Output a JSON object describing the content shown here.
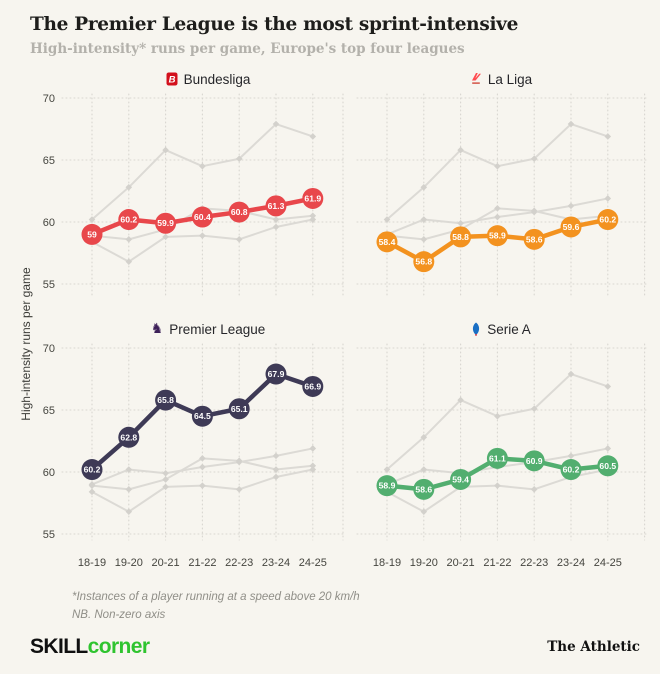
{
  "header": {
    "title": "The Premier League is the most sprint-intensive",
    "subtitle": "High-intensity* runs per game, Europe's top four leagues"
  },
  "chart_data": {
    "type": "line",
    "layout": "2x2 small multiples; each panel highlights one league, others shown in gray",
    "categories": [
      "18-19",
      "19-20",
      "20-21",
      "21-22",
      "22-23",
      "23-24",
      "24-25"
    ],
    "xlabel": "",
    "ylabel": "High-intensity runs per game",
    "ylim": [
      55,
      70
    ],
    "y_ticks": [
      70,
      65,
      60,
      55
    ],
    "grid": "dotted",
    "legend_position": "top-center of each panel",
    "series": [
      {
        "name": "Bundesliga",
        "color": "#e8474b",
        "values": [
          59,
          60.2,
          59.9,
          60.4,
          60.8,
          61.3,
          61.9
        ],
        "point_labels": [
          "59",
          "60.2",
          "59.9",
          "60.4",
          "60.8",
          "61.3",
          "61.9"
        ]
      },
      {
        "name": "La Liga",
        "color": "#f3921f",
        "values": [
          58.4,
          56.8,
          58.8,
          58.9,
          58.6,
          59.6,
          60.2
        ],
        "point_labels": [
          "58.4",
          "56.8",
          "58.8",
          "58.9",
          "58.6",
          "59.6",
          "60.2"
        ]
      },
      {
        "name": "Premier League",
        "color": "#3e3a56",
        "values": [
          60.2,
          62.8,
          65.8,
          64.5,
          65.1,
          67.9,
          66.9
        ],
        "point_labels": [
          "60.2",
          "62.8",
          "65.8",
          "64.5",
          "65.1",
          "67.9",
          "66.9"
        ]
      },
      {
        "name": "Serie A",
        "color": "#52ae6f",
        "values": [
          58.9,
          58.6,
          59.4,
          61.1,
          60.9,
          60.2,
          60.5
        ],
        "point_labels": [
          "58.9",
          "58.6",
          "59.4",
          "61.1",
          "60.9",
          "60.2",
          "60.5"
        ]
      }
    ]
  },
  "footnote": {
    "line1": "*Instances of a player running at a speed above 20 km/h",
    "line2": "NB. Non-zero axis"
  },
  "branding": {
    "skill": "SKILL",
    "corner": "corner",
    "athletic": "The Athletic"
  },
  "colors": {
    "background": "#f7f5ef",
    "bundesliga": "#e8474b",
    "la_liga": "#f3921f",
    "premier_league": "#3e3a56",
    "serie_a": "#52ae6f",
    "gray_series": "#dcdad5",
    "gridline": "#d8d6d0",
    "skillcorner_green": "#2fc42f"
  }
}
